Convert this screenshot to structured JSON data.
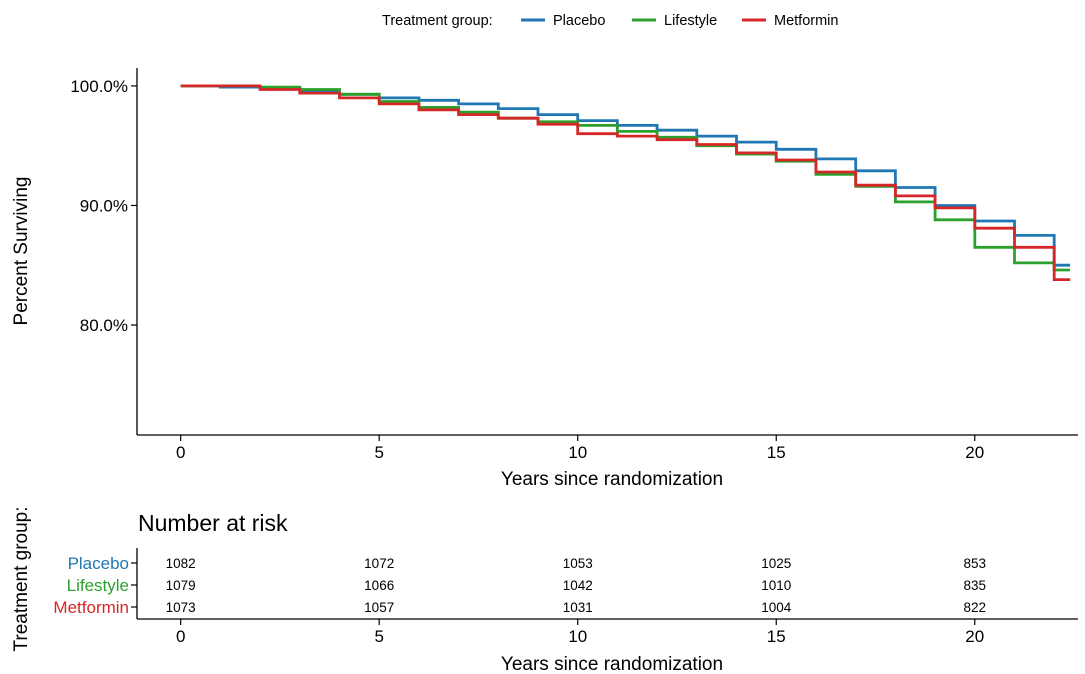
{
  "colors": {
    "Placebo": "#1f77b4",
    "Lifestyle": "#2ca02c",
    "Metformin": "#d62728"
  },
  "legend": {
    "title": "Treatment group:"
  },
  "chart_data": [
    {
      "type": "line",
      "step": true,
      "xlabel": "Years since randomization",
      "ylabel": "Percent Surviving",
      "xlim": [
        -1.1,
        22.6
      ],
      "ylim": [
        70.8,
        101.5
      ],
      "xticks": [
        0,
        5,
        10,
        15,
        20
      ],
      "yticks": [
        {
          "value": 100,
          "label": "100.0%"
        },
        {
          "value": 90,
          "label": "90.0%"
        },
        {
          "value": 80,
          "label": "80.0%"
        }
      ],
      "grid": false,
      "legend_position": "top",
      "series": [
        {
          "name": "Placebo",
          "points": [
            [
              0,
              100
            ],
            [
              1,
              99.9
            ],
            [
              2,
              99.8
            ],
            [
              3,
              99.6
            ],
            [
              4,
              99.3
            ],
            [
              5,
              99.0
            ],
            [
              6,
              98.8
            ],
            [
              7,
              98.5
            ],
            [
              8,
              98.1
            ],
            [
              9,
              97.6
            ],
            [
              10,
              97.1
            ],
            [
              11,
              96.7
            ],
            [
              12,
              96.3
            ],
            [
              13,
              95.8
            ],
            [
              14,
              95.3
            ],
            [
              15,
              94.7
            ],
            [
              16,
              93.9
            ],
            [
              17,
              92.9
            ],
            [
              18,
              91.5
            ],
            [
              19,
              90.0
            ],
            [
              20,
              88.7
            ],
            [
              21,
              87.5
            ],
            [
              22,
              85.0
            ],
            [
              22.4,
              85.0
            ]
          ]
        },
        {
          "name": "Lifestyle",
          "points": [
            [
              0,
              100
            ],
            [
              1,
              100
            ],
            [
              2,
              99.9
            ],
            [
              3,
              99.7
            ],
            [
              4,
              99.3
            ],
            [
              5,
              98.7
            ],
            [
              6,
              98.2
            ],
            [
              7,
              97.8
            ],
            [
              8,
              97.3
            ],
            [
              9,
              97.0
            ],
            [
              10,
              96.7
            ],
            [
              11,
              96.2
            ],
            [
              12,
              95.7
            ],
            [
              13,
              95.0
            ],
            [
              14,
              94.3
            ],
            [
              15,
              93.7
            ],
            [
              16,
              92.6
            ],
            [
              17,
              91.6
            ],
            [
              18,
              90.3
            ],
            [
              19,
              88.8
            ],
            [
              20,
              86.5
            ],
            [
              21,
              85.2
            ],
            [
              22,
              84.6
            ],
            [
              22.4,
              84.6
            ]
          ]
        },
        {
          "name": "Metformin",
          "points": [
            [
              0,
              100
            ],
            [
              1,
              100
            ],
            [
              2,
              99.7
            ],
            [
              3,
              99.4
            ],
            [
              4,
              99.0
            ],
            [
              5,
              98.5
            ],
            [
              6,
              98.0
            ],
            [
              7,
              97.6
            ],
            [
              8,
              97.3
            ],
            [
              9,
              96.8
            ],
            [
              10,
              96.0
            ],
            [
              11,
              95.8
            ],
            [
              12,
              95.5
            ],
            [
              13,
              95.1
            ],
            [
              14,
              94.4
            ],
            [
              15,
              93.8
            ],
            [
              16,
              92.8
            ],
            [
              17,
              91.7
            ],
            [
              18,
              90.8
            ],
            [
              19,
              89.8
            ],
            [
              20,
              88.1
            ],
            [
              21,
              86.5
            ],
            [
              22,
              83.8
            ],
            [
              22.4,
              83.8
            ]
          ]
        }
      ]
    },
    {
      "type": "table",
      "title": "Number at risk",
      "ylabel": "Treatment group:",
      "xlabel": "Years since randomization",
      "xlim": [
        -1.1,
        22.6
      ],
      "xticks": [
        0,
        5,
        10,
        15,
        20
      ],
      "rows": [
        {
          "group": "Placebo",
          "values": [
            1082,
            1072,
            1053,
            1025,
            853
          ]
        },
        {
          "group": "Lifestyle",
          "values": [
            1079,
            1066,
            1042,
            1010,
            835
          ]
        },
        {
          "group": "Metformin",
          "values": [
            1073,
            1057,
            1031,
            1004,
            822
          ]
        }
      ]
    }
  ]
}
